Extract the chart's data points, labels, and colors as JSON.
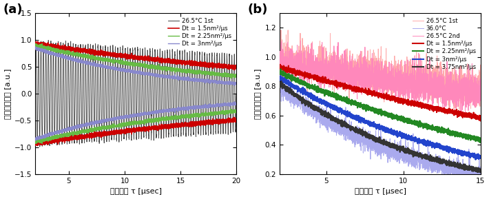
{
  "panel_a": {
    "label": "(a)",
    "xlabel": "緩和時間 τ [μsec]",
    "ylabel": "コントラスト [a.u.]",
    "xlim": [
      2,
      20
    ],
    "ylim": [
      -1.5,
      1.5
    ],
    "xticks": [
      5,
      10,
      15,
      20
    ],
    "yticks": [
      -1.5,
      -1.0,
      -0.5,
      0.0,
      0.5,
      1.0,
      1.5
    ],
    "legend": [
      {
        "label": "26.5°C 1st",
        "color": "#222222",
        "lw": 0.6
      },
      {
        "label": "Dt = 1.5nm²/μs",
        "color": "#cc0000",
        "lw": 1.2
      },
      {
        "label": "Dt = 2.25nm²/μs",
        "color": "#66bb44",
        "lw": 1.0
      },
      {
        "label": "Dt = 3nm²/μs",
        "color": "#8888cc",
        "lw": 1.0
      }
    ],
    "env_red_tau": 28,
    "env_green_tau": 18,
    "env_blue_tau": 12,
    "osc_freq": 4.5,
    "osc_tau": 60
  },
  "panel_b": {
    "label": "(b)",
    "xlabel": "緩和時間 τ [μsec]",
    "ylabel": "コントラスト [a.u.]",
    "xlim": [
      2,
      15
    ],
    "ylim": [
      0.2,
      1.3
    ],
    "xticks": [
      5,
      10,
      15
    ],
    "yticks": [
      0.2,
      0.4,
      0.6,
      0.8,
      1.0,
      1.2
    ],
    "legend": [
      {
        "label": "26.5°C 1st",
        "color": "#ffaaaa",
        "lw": 0.7
      },
      {
        "label": "36.0°C",
        "color": "#aaaaee",
        "lw": 0.7
      },
      {
        "label": "26.5°C 2nd",
        "color": "#ff88bb",
        "lw": 0.7
      },
      {
        "label": "Dt = 1.5nm²/μs",
        "color": "#cc0000",
        "lw": 1.5
      },
      {
        "label": "Dt = 2.25nm²/μs",
        "color": "#228822",
        "lw": 1.5
      },
      {
        "label": "Dt = 3nm²/μs",
        "color": "#2244cc",
        "lw": 1.5
      },
      {
        "label": "Dt = 3.75nm²/μs",
        "color": "#333333",
        "lw": 1.5
      }
    ],
    "tau_1st": 60,
    "tau_36": 9,
    "tau_2nd": 50,
    "tau_dt15": 28,
    "tau_dt225": 18,
    "tau_dt3": 13,
    "tau_dt375": 10
  }
}
